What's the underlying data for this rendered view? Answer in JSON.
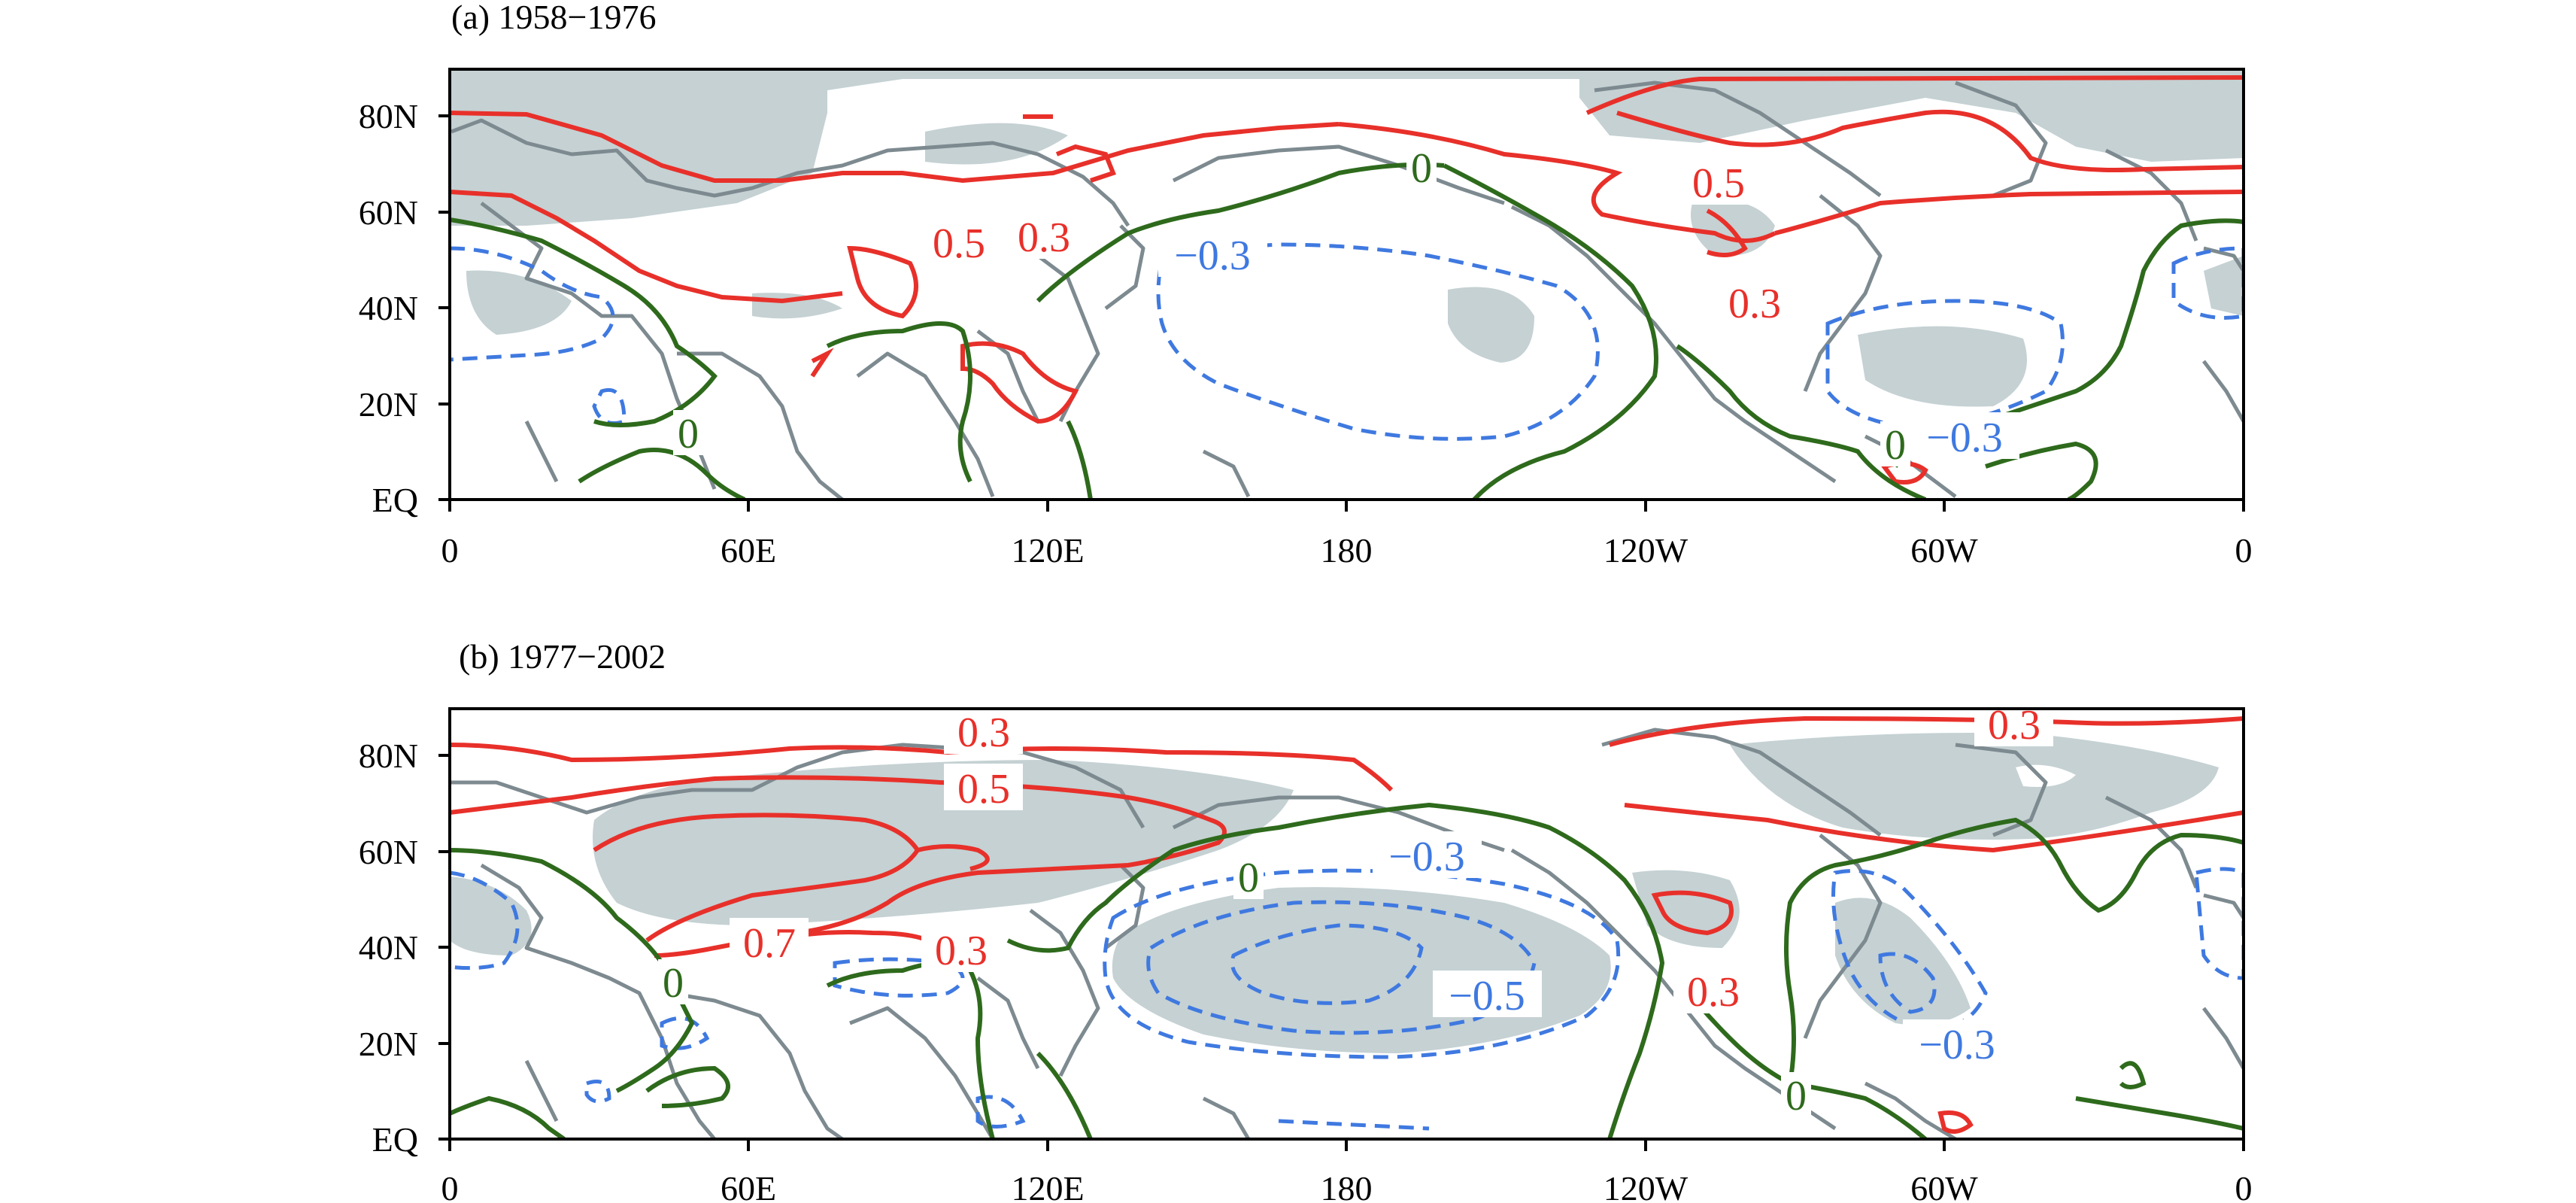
{
  "figure": {
    "panels": [
      {
        "id": "a",
        "title": "(a) 1958−1976",
        "y_ticks": [
          "80N",
          "60N",
          "40N",
          "20N",
          "EQ"
        ],
        "x_ticks": [
          "0",
          "60E",
          "120E",
          "180",
          "120W",
          "60W",
          "0"
        ],
        "contour_labels": [
          "0",
          "0",
          "0",
          "0.5",
          "0.3",
          "0.5",
          "0.3",
          "−0.3",
          "−0.3"
        ]
      },
      {
        "id": "b",
        "title": "(b) 1977−2002",
        "y_ticks": [
          "80N",
          "60N",
          "40N",
          "20N",
          "EQ"
        ],
        "x_ticks": [
          "0",
          "60E",
          "120E",
          "180",
          "120W",
          "60W",
          "0"
        ],
        "contour_labels": [
          "0.3",
          "0.5",
          "0.3",
          "0.7",
          "0.3",
          "0.3",
          "0",
          "0",
          "0",
          "−0.3",
          "−0.5",
          "−0.3"
        ]
      }
    ]
  },
  "colors": {
    "positive_contour": "#e8302a",
    "negative_contour": "#3f79e0",
    "zero_contour": "#2e6a1c",
    "coastline": "#7d8a90",
    "shading": "#c5d1d3",
    "frame": "#000000"
  }
}
